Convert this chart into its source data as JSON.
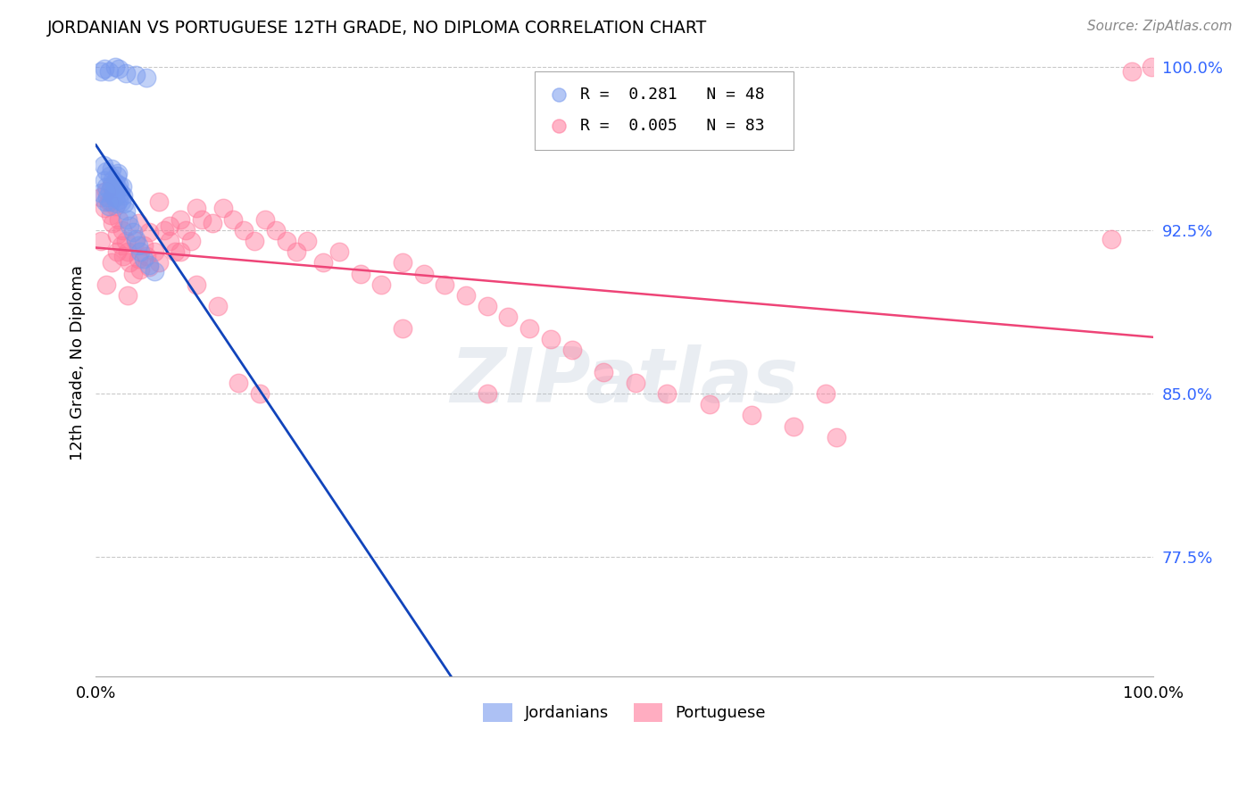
{
  "title": "JORDANIAN VS PORTUGUESE 12TH GRADE, NO DIPLOMA CORRELATION CHART",
  "source_text": "Source: ZipAtlas.com",
  "ylabel": "12th Grade, No Diploma",
  "xlim": [
    0.0,
    1.0
  ],
  "ylim": [
    0.72,
    1.008
  ],
  "yticks": [
    0.775,
    0.85,
    0.925,
    1.0
  ],
  "ytick_labels": [
    "77.5%",
    "85.0%",
    "92.5%",
    "100.0%"
  ],
  "legend_blue_r": "0.281",
  "legend_blue_n": "48",
  "legend_pink_r": "0.005",
  "legend_pink_n": "83",
  "blue_color": "#7799EE",
  "pink_color": "#FF7799",
  "blue_trend_color": "#1144BB",
  "pink_trend_color": "#EE4477",
  "background_color": "#FFFFFF",
  "watermark_text": "ZIPatlas",
  "jordanians_x": [
    0.005,
    0.007,
    0.008,
    0.009,
    0.01,
    0.01,
    0.011,
    0.012,
    0.013,
    0.013,
    0.014,
    0.015,
    0.015,
    0.016,
    0.016,
    0.017,
    0.018,
    0.018,
    0.019,
    0.02,
    0.02,
    0.021,
    0.021,
    0.022,
    0.022,
    0.023,
    0.024,
    0.025,
    0.026,
    0.027,
    0.028,
    0.03,
    0.032,
    0.035,
    0.038,
    0.04,
    0.042,
    0.045,
    0.05,
    0.055,
    0.005,
    0.008,
    0.012,
    0.018,
    0.022,
    0.028,
    0.038,
    0.048
  ],
  "jordanians_y": [
    0.942,
    0.955,
    0.948,
    0.938,
    0.945,
    0.952,
    0.94,
    0.936,
    0.943,
    0.95,
    0.938,
    0.946,
    0.953,
    0.941,
    0.948,
    0.944,
    0.94,
    0.947,
    0.943,
    0.95,
    0.937,
    0.944,
    0.951,
    0.939,
    0.946,
    0.942,
    0.938,
    0.945,
    0.941,
    0.937,
    0.934,
    0.93,
    0.927,
    0.924,
    0.921,
    0.918,
    0.915,
    0.912,
    0.909,
    0.906,
    0.998,
    0.999,
    0.998,
    1.0,
    0.999,
    0.997,
    0.996,
    0.995
  ],
  "portuguese_x": [
    0.005,
    0.008,
    0.01,
    0.012,
    0.014,
    0.015,
    0.016,
    0.018,
    0.02,
    0.022,
    0.024,
    0.025,
    0.026,
    0.028,
    0.03,
    0.032,
    0.035,
    0.038,
    0.04,
    0.042,
    0.045,
    0.048,
    0.05,
    0.055,
    0.06,
    0.065,
    0.07,
    0.075,
    0.08,
    0.085,
    0.09,
    0.095,
    0.1,
    0.11,
    0.12,
    0.13,
    0.14,
    0.15,
    0.16,
    0.17,
    0.18,
    0.19,
    0.2,
    0.215,
    0.23,
    0.25,
    0.27,
    0.29,
    0.31,
    0.33,
    0.35,
    0.37,
    0.39,
    0.41,
    0.43,
    0.45,
    0.48,
    0.51,
    0.54,
    0.58,
    0.62,
    0.66,
    0.7,
    0.01,
    0.02,
    0.03,
    0.04,
    0.05,
    0.06,
    0.07,
    0.08,
    0.095,
    0.115,
    0.135,
    0.155,
    0.29,
    0.37,
    0.69,
    0.96,
    0.98,
    0.998,
    0.005,
    0.015
  ],
  "portuguese_y": [
    0.94,
    0.935,
    0.943,
    0.938,
    0.932,
    0.945,
    0.928,
    0.936,
    0.923,
    0.93,
    0.918,
    0.925,
    0.913,
    0.92,
    0.915,
    0.91,
    0.905,
    0.92,
    0.912,
    0.907,
    0.918,
    0.913,
    0.908,
    0.915,
    0.91,
    0.925,
    0.92,
    0.915,
    0.93,
    0.925,
    0.92,
    0.935,
    0.93,
    0.928,
    0.935,
    0.93,
    0.925,
    0.92,
    0.93,
    0.925,
    0.92,
    0.915,
    0.92,
    0.91,
    0.915,
    0.905,
    0.9,
    0.91,
    0.905,
    0.9,
    0.895,
    0.89,
    0.885,
    0.88,
    0.875,
    0.87,
    0.86,
    0.855,
    0.85,
    0.845,
    0.84,
    0.835,
    0.83,
    0.9,
    0.915,
    0.895,
    0.928,
    0.924,
    0.938,
    0.927,
    0.915,
    0.9,
    0.89,
    0.855,
    0.85,
    0.88,
    0.85,
    0.85,
    0.921,
    0.998,
    1.0,
    0.92,
    0.91
  ]
}
